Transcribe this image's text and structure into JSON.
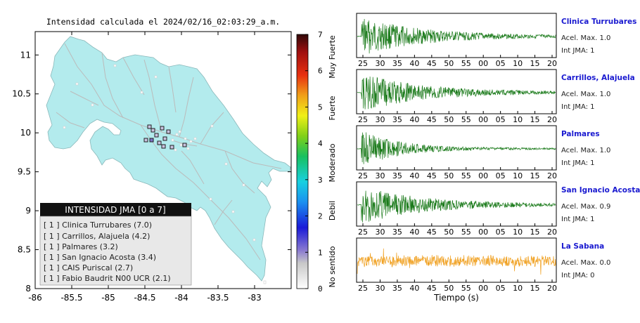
{
  "map": {
    "title": "Intensidad calculada el 2024/02/16_02:03:29_a.m.",
    "x_ticks": [
      "-86",
      "-85.5",
      "-85",
      "-84.5",
      "-84",
      "-83.5",
      "-83"
    ],
    "y_ticks": [
      "11",
      "10.5",
      "10",
      "9.5",
      "9",
      "8.5",
      "8"
    ],
    "legend": {
      "title": "INTENSIDAD JMA [0 a 7]",
      "items": [
        "[ 1 ]  Clinica Turrubares (7.0)",
        "[ 1 ]  Carrillos, Alajuela (4.2)",
        "[ 1 ]  Palmares (3.2)",
        "[ 1 ]  San Ignacio Acosta (3.4)",
        "[ 1 ]  CAIS Puriscal (2.7)",
        "[ 1 ]  Fabio Baudrit N00 UCR (2.1)"
      ]
    }
  },
  "colorbar": {
    "ticks": [
      "7",
      "6",
      "5",
      "4",
      "3",
      "2",
      "1",
      "0"
    ],
    "labels": [
      "Muy Fuerte",
      "Fuerte",
      "Moderado",
      "Debil",
      "No sentido"
    ]
  },
  "seismograms": {
    "x_ticks": [
      "25",
      "30",
      "35",
      "40",
      "45",
      "50",
      "55",
      "00",
      "05",
      "10",
      "15",
      "20"
    ],
    "xlabel": "Tiempo (s)",
    "stations": [
      {
        "name": "Clinica Turrubares",
        "acel": "Acel. Max. 1.0",
        "jma": "Int JMA: 1",
        "color": "#1a7a1a"
      },
      {
        "name": "Carrillos, Alajuela",
        "acel": "Acel. Max. 1.0",
        "jma": "Int JMA: 1",
        "color": "#1a7a1a"
      },
      {
        "name": "Palmares",
        "acel": "Acel. Max. 1.0",
        "jma": "Int JMA: 1",
        "color": "#1a7a1a"
      },
      {
        "name": "San Ignacio Acosta",
        "acel": "Acel. Max. 0.9",
        "jma": "Int JMA: 1",
        "color": "#1a7a1a"
      },
      {
        "name": "La Sabana",
        "acel": "Acel. Max. 0.0",
        "jma": "Int JMA: 0",
        "color": "#f0a020"
      }
    ]
  },
  "chart_data": [
    {
      "type": "scatter",
      "title": "Intensidad calculada el 2024/02/16_02:03:29_a.m.",
      "xlim": [
        -86,
        -82.5
      ],
      "ylim": [
        8,
        11.3
      ],
      "x_ticks": [
        -86,
        -85.5,
        -85,
        -84.5,
        -84,
        -83.5,
        -83
      ],
      "y_ticks": [
        8,
        8.5,
        9,
        9.5,
        10,
        10.5,
        11
      ],
      "stations": [
        {
          "name": "Clinica Turrubares",
          "intensity_jma": 1,
          "value": 7.0
        },
        {
          "name": "Carrillos, Alajuela",
          "intensity_jma": 1,
          "value": 4.2
        },
        {
          "name": "Palmares",
          "intensity_jma": 1,
          "value": 3.2
        },
        {
          "name": "San Ignacio Acosta",
          "intensity_jma": 1,
          "value": 3.4
        },
        {
          "name": "CAIS Puriscal",
          "intensity_jma": 1,
          "value": 2.7
        },
        {
          "name": "Fabio Baudrit N00 UCR",
          "intensity_jma": 1,
          "value": 2.1
        }
      ],
      "colorbar": {
        "range": [
          0,
          7
        ],
        "labels": [
          "No sentido",
          "Debil",
          "Moderado",
          "Fuerte",
          "Muy Fuerte"
        ]
      }
    },
    {
      "type": "line",
      "xlabel": "Tiempo (s)",
      "x_ticks": [
        "25",
        "30",
        "35",
        "40",
        "45",
        "50",
        "55",
        "00",
        "05",
        "10",
        "15",
        "20"
      ],
      "series": [
        {
          "name": "Clinica Turrubares",
          "acel_max": 1.0,
          "int_jma": 1
        },
        {
          "name": "Carrillos, Alajuela",
          "acel_max": 1.0,
          "int_jma": 1
        },
        {
          "name": "Palmares",
          "acel_max": 1.0,
          "int_jma": 1
        },
        {
          "name": "San Ignacio Acosta",
          "acel_max": 0.9,
          "int_jma": 1
        },
        {
          "name": "La Sabana",
          "acel_max": 0.0,
          "int_jma": 0
        }
      ]
    }
  ]
}
